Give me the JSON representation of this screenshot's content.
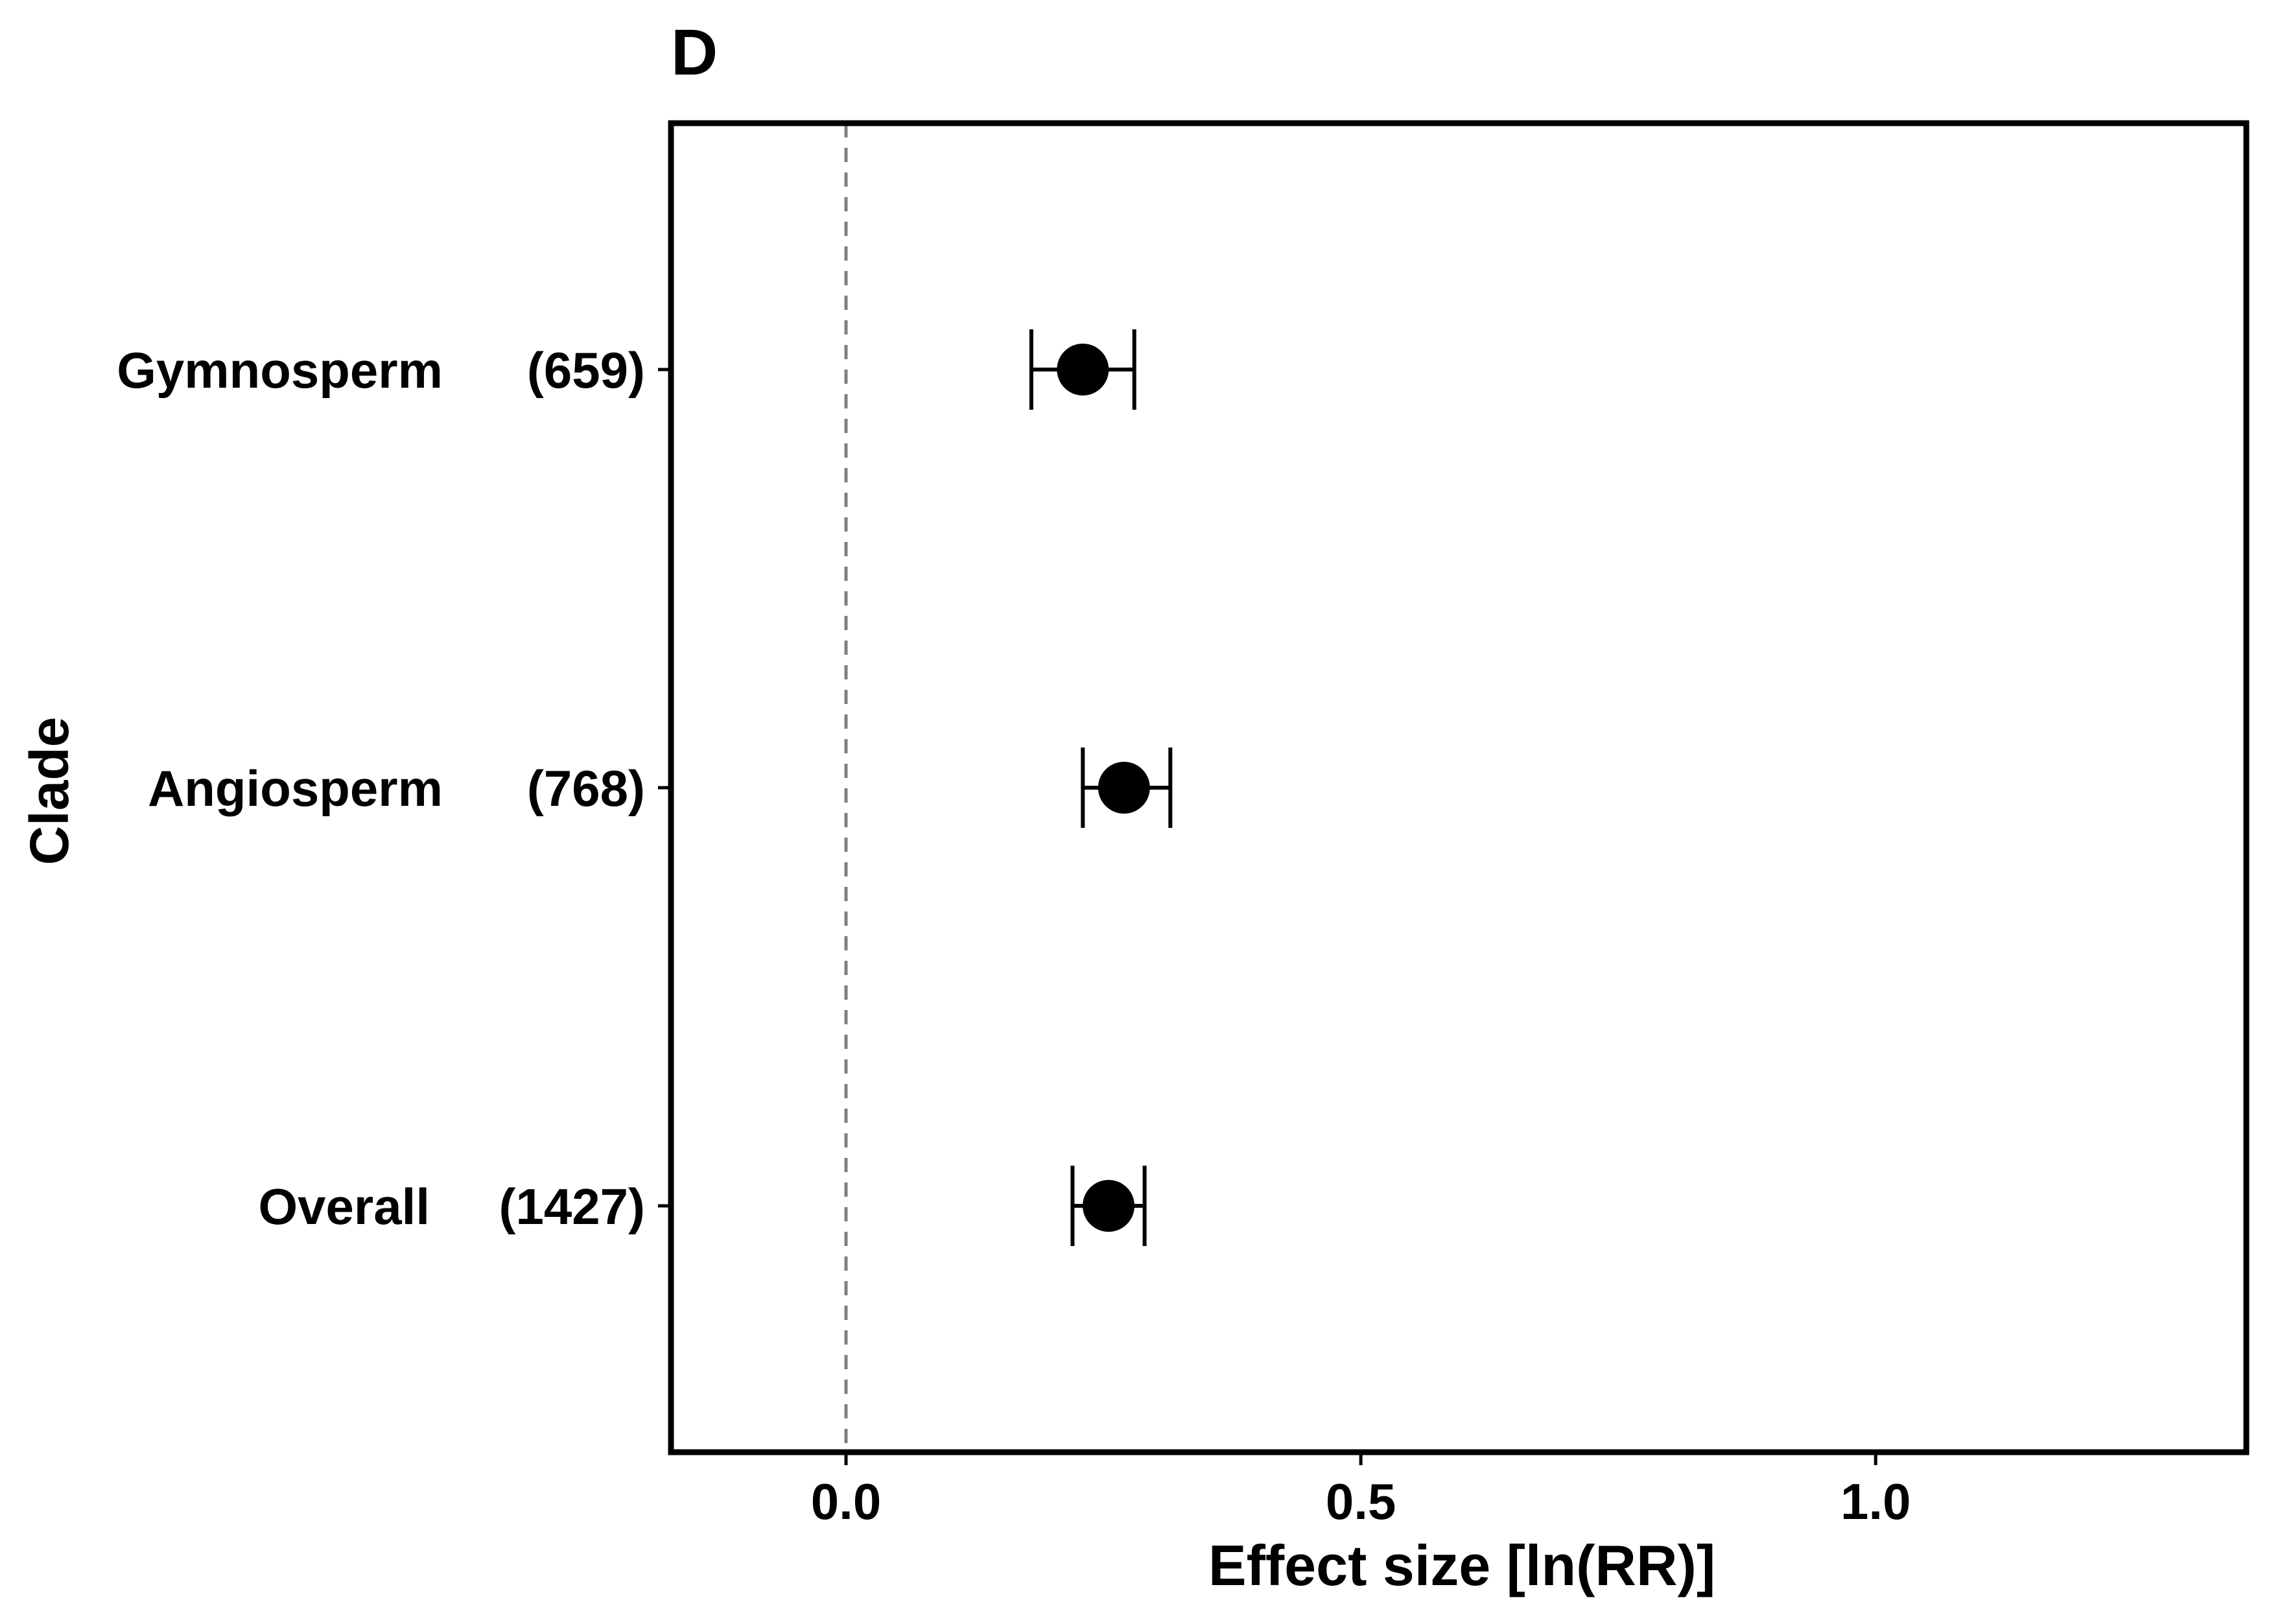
{
  "chart_data": {
    "type": "scatter",
    "panel_label": "D",
    "xlabel": "Effect size [ln(RR)]",
    "ylabel": "Clade",
    "xlim": [
      -0.17,
      1.36
    ],
    "xticks": [
      "0.0",
      "0.5",
      "1.0"
    ],
    "xtick_values": [
      0.0,
      0.5,
      1.0
    ],
    "reference_line": 0.0,
    "grid": false,
    "legend": "none",
    "categories": [
      "Gymnosperm",
      "Angiosperm",
      "Overall"
    ],
    "counts": [
      "(659)",
      "(768)",
      "(1427)"
    ],
    "points": [
      {
        "category": "Gymnosperm",
        "count": "(659)",
        "estimate": 0.23,
        "lower": 0.18,
        "upper": 0.28
      },
      {
        "category": "Angiosperm",
        "count": "(768)",
        "estimate": 0.27,
        "lower": 0.23,
        "upper": 0.315
      },
      {
        "category": "Overall",
        "count": "(1427)",
        "estimate": 0.255,
        "lower": 0.22,
        "upper": 0.29
      }
    ],
    "colors": {
      "point": "#000000",
      "axis": "#000000",
      "reference_line": "#808080"
    }
  }
}
